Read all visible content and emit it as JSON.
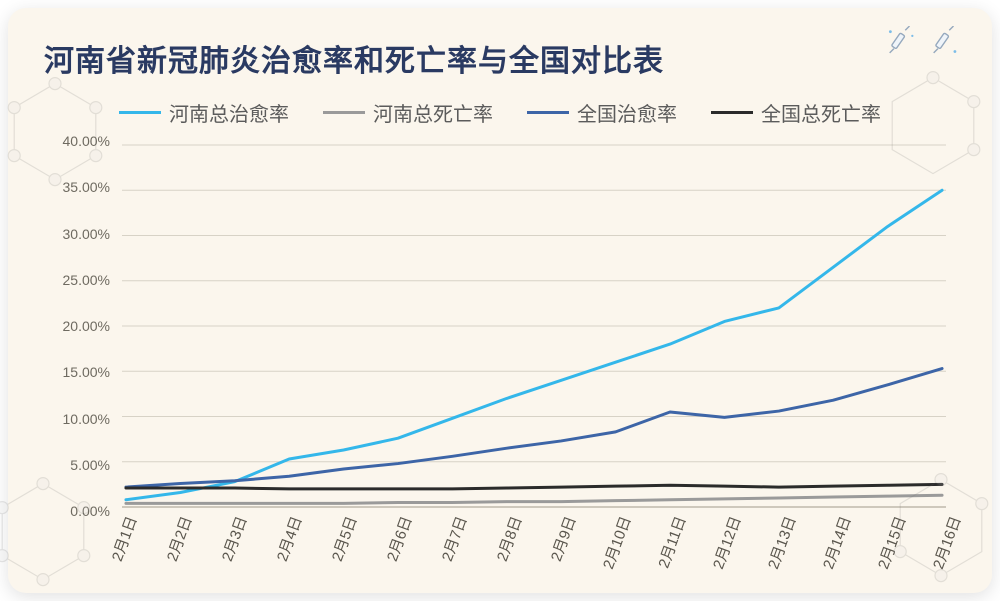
{
  "card": {
    "background_color": "#fbf6ed",
    "title_color": "#2a3a62"
  },
  "title": "河南省新冠肺炎治愈率和死亡率与全国对比表",
  "legend": {
    "label_color": "#5b5b5b",
    "items": [
      {
        "label": "河南总治愈率",
        "color": "#34b7ea"
      },
      {
        "label": "河南总死亡率",
        "color": "#9a9a9a"
      },
      {
        "label": "全国治愈率",
        "color": "#3d65a7"
      },
      {
        "label": "全国总死亡率",
        "color": "#2b2b2b"
      }
    ]
  },
  "chart": {
    "type": "line",
    "background_color": "#fbf6ed",
    "grid_color": "#d7d2c6",
    "axis_color": "#bfb9ab",
    "ylabel_color": "#6e6a60",
    "xlabel_color": "#5a564d",
    "label_fontsize": 14,
    "xlabel_fontsize": 15,
    "xlabel_rotation_deg": -70,
    "line_width": 3,
    "ylim": [
      0,
      40
    ],
    "yticks": [
      0,
      5,
      10,
      15,
      20,
      25,
      30,
      35,
      40
    ],
    "ytick_labels": [
      "0.00%",
      "5.00%",
      "10.00%",
      "15.00%",
      "20.00%",
      "25.00%",
      "30.00%",
      "35.00%",
      "40.00%"
    ],
    "categories": [
      "2月1日",
      "2月2日",
      "2月3日",
      "2月4日",
      "2月5日",
      "2月6日",
      "2月7日",
      "2月8日",
      "2月9日",
      "2月10日",
      "2月11日",
      "2月12日",
      "2月13日",
      "2月14日",
      "2月15日",
      "2月16日"
    ],
    "series": [
      {
        "name": "河南总治愈率",
        "color": "#34b7ea",
        "values": [
          0.8,
          1.6,
          2.8,
          5.3,
          6.3,
          7.6,
          9.8,
          12.0,
          14.0,
          16.0,
          18.0,
          20.5,
          22.0,
          26.5,
          31.0,
          35.0
        ]
      },
      {
        "name": "全国治愈率",
        "color": "#3d65a7",
        "values": [
          2.2,
          2.6,
          2.9,
          3.4,
          4.2,
          4.8,
          5.6,
          6.5,
          7.3,
          8.3,
          10.5,
          9.9,
          10.6,
          11.8,
          13.5,
          15.3
        ]
      },
      {
        "name": "全国总死亡率",
        "color": "#2b2b2b",
        "values": [
          2.1,
          2.1,
          2.1,
          2.0,
          2.0,
          2.0,
          2.0,
          2.1,
          2.2,
          2.3,
          2.4,
          2.3,
          2.2,
          2.3,
          2.4,
          2.5
        ]
      },
      {
        "name": "河南总死亡率",
        "color": "#9a9a9a",
        "values": [
          0.4,
          0.4,
          0.4,
          0.4,
          0.4,
          0.5,
          0.5,
          0.6,
          0.6,
          0.7,
          0.8,
          0.9,
          1.0,
          1.1,
          1.2,
          1.3
        ]
      }
    ]
  }
}
